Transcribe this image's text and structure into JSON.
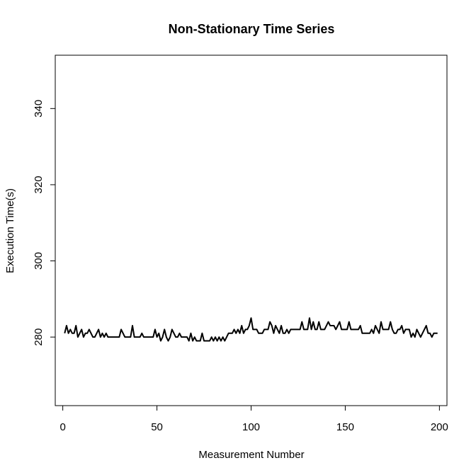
{
  "chart_data": {
    "type": "line",
    "title": "Non-Stationary Time Series",
    "xlabel": "Measurement Number",
    "ylabel": "Execution Time(s)",
    "xlim": [
      -4,
      204
    ],
    "ylim": [
      262,
      354
    ],
    "x_ticks": [
      0,
      50,
      100,
      150,
      200
    ],
    "y_ticks": [
      280,
      300,
      320,
      340
    ],
    "grid": false,
    "series": [
      {
        "color": "#000000",
        "x": [
          1,
          2,
          3,
          4,
          5,
          6,
          7,
          8,
          9,
          10,
          11,
          12,
          13,
          14,
          15,
          16,
          17,
          18,
          19,
          20,
          21,
          22,
          23,
          24,
          25,
          26,
          27,
          28,
          29,
          30,
          31,
          32,
          33,
          34,
          35,
          36,
          37,
          38,
          39,
          40,
          41,
          42,
          43,
          44,
          45,
          46,
          47,
          48,
          49,
          50,
          51,
          52,
          53,
          54,
          55,
          56,
          57,
          58,
          59,
          60,
          61,
          62,
          63,
          64,
          65,
          66,
          67,
          68,
          69,
          70,
          71,
          72,
          73,
          74,
          75,
          76,
          77,
          78,
          79,
          80,
          81,
          82,
          83,
          84,
          85,
          86,
          87,
          88,
          89,
          90,
          91,
          92,
          93,
          94,
          95,
          96,
          97,
          98,
          99,
          100,
          101,
          102,
          103,
          104,
          105,
          106,
          107,
          108,
          109,
          110,
          111,
          112,
          113,
          114,
          115,
          116,
          117,
          118,
          119,
          120,
          121,
          122,
          123,
          124,
          125,
          126,
          127,
          128,
          129,
          130,
          131,
          132,
          133,
          134,
          135,
          136,
          137,
          138,
          139,
          140,
          141,
          142,
          143,
          144,
          145,
          146,
          147,
          148,
          149,
          150,
          151,
          152,
          153,
          154,
          155,
          156,
          157,
          158,
          159,
          160,
          161,
          162,
          163,
          164,
          165,
          166,
          167,
          168,
          169,
          170,
          171,
          172,
          173,
          174,
          175,
          176,
          177,
          178,
          179,
          180,
          181,
          182,
          183,
          184,
          185,
          186,
          187,
          188,
          189,
          190,
          191,
          192,
          193,
          194,
          195,
          196,
          197,
          198,
          199
        ],
        "y": [
          281,
          283,
          281,
          282,
          281,
          281,
          283,
          280,
          281,
          282,
          280,
          281,
          281,
          282,
          281,
          280,
          280,
          281,
          282,
          280,
          281,
          280,
          281,
          280,
          280,
          280,
          280,
          280,
          280,
          280,
          282,
          281,
          280,
          280,
          280,
          280,
          283,
          280,
          280,
          280,
          280,
          281,
          280,
          280,
          280,
          280,
          280,
          280,
          282,
          280,
          281,
          279,
          280,
          282,
          280,
          279,
          280,
          282,
          281,
          280,
          280,
          281,
          280,
          280,
          280,
          280,
          279,
          281,
          279,
          280,
          279,
          279,
          279,
          281,
          279,
          279,
          279,
          279,
          280,
          279,
          280,
          279,
          280,
          279,
          280,
          279,
          280,
          281,
          281,
          281,
          282,
          281,
          282,
          281,
          283,
          281,
          282,
          282,
          283,
          285,
          282,
          282,
          282,
          281,
          281,
          281,
          282,
          282,
          282,
          284,
          283,
          281,
          283,
          282,
          281,
          283,
          281,
          281,
          282,
          281,
          282,
          282,
          282,
          282,
          282,
          282,
          284,
          282,
          282,
          282,
          285,
          282,
          284,
          282,
          282,
          284,
          282,
          282,
          282,
          283,
          284,
          283,
          283,
          283,
          282,
          283,
          284,
          282,
          282,
          282,
          282,
          284,
          282,
          282,
          282,
          282,
          282,
          283,
          281,
          281,
          281,
          281,
          281,
          282,
          281,
          283,
          282,
          281,
          284,
          282,
          282,
          282,
          282,
          284,
          282,
          281,
          281,
          282,
          282,
          283,
          281,
          282,
          282,
          282,
          280,
          281,
          280,
          282,
          281,
          280,
          281,
          282,
          283,
          281,
          281,
          280,
          281,
          281,
          281
        ]
      }
    ]
  }
}
